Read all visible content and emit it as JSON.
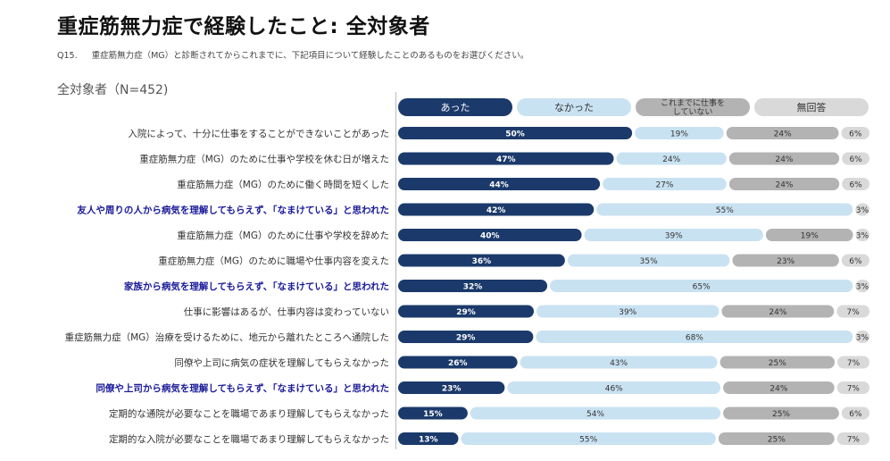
{
  "title": "重症筋無力症で経験したこと: 全対象者",
  "question_no": "Q15.",
  "question": "重症筋無力症（MG）と診断されてからこれまでに、下記項目について経験したことのあるものをお選びください。",
  "scope": "全対象者（N=452)",
  "colors": {
    "atta": "#1b3a6b",
    "nakatta": "#c9e2f2",
    "notworking": "#b3b3b3",
    "noanswer": "#d9d9d9",
    "highlight": "#1a1a9a",
    "label": "#333333"
  },
  "chart_data": {
    "type": "bar",
    "orientation": "horizontal",
    "stacked": true,
    "xlim": [
      0,
      100
    ],
    "unit": "%",
    "legend": [
      "あった",
      "なかった",
      "これまでに仕事を\nしていない",
      "無回答"
    ],
    "categories": [
      "入院によって、十分に仕事をすることができないことがあった",
      "重症筋無力症（MG）のために仕事や学校を休む日が増えた",
      "重症筋無力症（MG）のために働く時間を短くした",
      "友人や周りの人から病気を理解してもらえず、「なまけている」と思われた",
      "重症筋無力症（MG）のために仕事や学校を辞めた",
      "重症筋無力症（MG）のために職場や仕事内容を変えた",
      "家族から病気を理解してもらえず、「なまけている」と思われた",
      "仕事に影響はあるが、仕事内容は変わっていない",
      "重症筋無力症（MG）治療を受けるために、地元から離れたところへ通院した",
      "同僚や上司に病気の症状を理解してもらえなかった",
      "同僚や上司から病気を理解してもらえず、「なまけている」と思われた",
      "定期的な通院が必要なことを職場であまり理解してもらえなかった",
      "定期的な入院が必要なことを職場であまり理解してもらえなかった"
    ],
    "highlighted": [
      false,
      false,
      false,
      true,
      false,
      false,
      true,
      false,
      false,
      false,
      true,
      false,
      false
    ],
    "series": [
      {
        "name": "あった",
        "values": [
          50,
          47,
          44,
          42,
          40,
          36,
          32,
          29,
          29,
          26,
          23,
          15,
          13
        ]
      },
      {
        "name": "なかった",
        "values": [
          19,
          24,
          27,
          55,
          39,
          35,
          65,
          39,
          68,
          43,
          46,
          54,
          55
        ]
      },
      {
        "name": "これまでに仕事をしていない",
        "values": [
          24,
          24,
          24,
          null,
          19,
          23,
          null,
          24,
          null,
          25,
          24,
          25,
          25
        ]
      },
      {
        "name": "無回答",
        "values": [
          6,
          6,
          6,
          3,
          3,
          6,
          3,
          7,
          3,
          7,
          7,
          6,
          7
        ]
      }
    ]
  }
}
